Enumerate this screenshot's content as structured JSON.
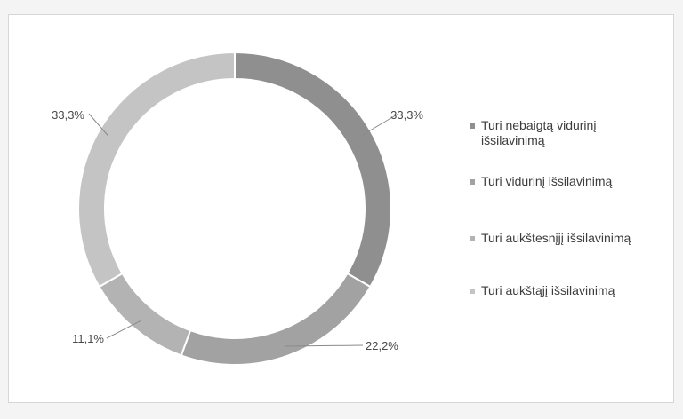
{
  "chart_data": {
    "type": "pie",
    "variant": "donut",
    "categories": [
      "Turi nebaigtą vidurinį išsilavinimą",
      "Turi vidurinį išsilavinimą",
      "Turi aukštesnįjį išsilavinimą",
      "Turi aukštąjį išsilavinimą"
    ],
    "values": [
      33.3,
      22.2,
      11.1,
      33.3
    ],
    "data_labels": [
      "33,3%",
      "22,2%",
      "11,1%",
      "33,3%"
    ],
    "colors": [
      "#8f8f8f",
      "#a2a2a2",
      "#b3b3b3",
      "#c4c4c4"
    ],
    "legend_position": "right"
  }
}
